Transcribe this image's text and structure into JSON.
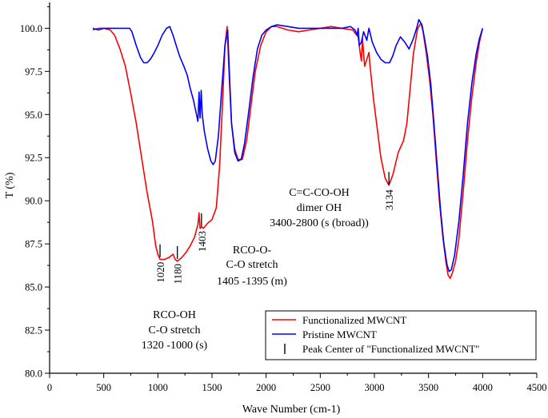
{
  "chart_data": {
    "type": "line",
    "title": "",
    "xlabel": "Wave Number (cm-1)",
    "ylabel": "T (%)",
    "xlim": [
      0,
      4500
    ],
    "ylim": [
      80,
      101.5
    ],
    "x_ticks": [
      0,
      500,
      1000,
      1500,
      2000,
      2500,
      3000,
      3500,
      4000,
      4500
    ],
    "y_ticks": [
      80.0,
      82.5,
      85.0,
      87.5,
      90.0,
      92.5,
      95.0,
      97.5,
      100.0
    ],
    "x_tick_labels": [
      "0",
      "500",
      "1000",
      "1500",
      "2000",
      "2500",
      "3000",
      "3500",
      "4000",
      "4500"
    ],
    "y_tick_labels": [
      "80.0",
      "82.5",
      "85.0",
      "87.5",
      "90.0",
      "92.5",
      "95.0",
      "97.5",
      "100.0"
    ],
    "series": [
      {
        "name": "Functionalized MWCNT",
        "color": "#ff0000",
        "points": [
          [
            400,
            99.9
          ],
          [
            450,
            100.0
          ],
          [
            500,
            100.0
          ],
          [
            560,
            99.9
          ],
          [
            600,
            99.6
          ],
          [
            650,
            98.8
          ],
          [
            700,
            97.8
          ],
          [
            750,
            96.2
          ],
          [
            800,
            94.5
          ],
          [
            850,
            92.5
          ],
          [
            900,
            90.5
          ],
          [
            950,
            88.8
          ],
          [
            980,
            87.4
          ],
          [
            1000,
            86.9
          ],
          [
            1020,
            86.6
          ],
          [
            1060,
            86.6
          ],
          [
            1100,
            86.7
          ],
          [
            1140,
            86.9
          ],
          [
            1160,
            86.6
          ],
          [
            1180,
            86.5
          ],
          [
            1220,
            86.7
          ],
          [
            1260,
            87.0
          ],
          [
            1300,
            87.4
          ],
          [
            1340,
            87.9
          ],
          [
            1360,
            88.4
          ],
          [
            1370,
            88.6
          ],
          [
            1380,
            89.3
          ],
          [
            1390,
            88.4
          ],
          [
            1403,
            88.5
          ],
          [
            1420,
            88.4
          ],
          [
            1460,
            88.7
          ],
          [
            1500,
            88.9
          ],
          [
            1540,
            89.6
          ],
          [
            1570,
            92.0
          ],
          [
            1600,
            96.0
          ],
          [
            1620,
            99.0
          ],
          [
            1640,
            100.1
          ],
          [
            1660,
            97.0
          ],
          [
            1680,
            94.5
          ],
          [
            1710,
            93.0
          ],
          [
            1740,
            92.4
          ],
          [
            1780,
            92.4
          ],
          [
            1820,
            93.5
          ],
          [
            1860,
            95.5
          ],
          [
            1900,
            97.5
          ],
          [
            1950,
            99.0
          ],
          [
            2000,
            99.8
          ],
          [
            2050,
            100.1
          ],
          [
            2100,
            100.1
          ],
          [
            2200,
            99.9
          ],
          [
            2300,
            99.8
          ],
          [
            2400,
            99.9
          ],
          [
            2500,
            100.0
          ],
          [
            2600,
            100.1
          ],
          [
            2700,
            100.0
          ],
          [
            2800,
            99.9
          ],
          [
            2850,
            99.5
          ],
          [
            2870,
            98.5
          ],
          [
            2880,
            98.1
          ],
          [
            2890,
            99.4
          ],
          [
            2910,
            97.8
          ],
          [
            2920,
            98.0
          ],
          [
            2940,
            98.4
          ],
          [
            2950,
            98.6
          ],
          [
            2960,
            97.8
          ],
          [
            2990,
            96.0
          ],
          [
            3020,
            94.5
          ],
          [
            3060,
            92.5
          ],
          [
            3100,
            91.3
          ],
          [
            3134,
            90.9
          ],
          [
            3170,
            91.5
          ],
          [
            3220,
            92.8
          ],
          [
            3270,
            93.5
          ],
          [
            3300,
            94.5
          ],
          [
            3330,
            96.5
          ],
          [
            3360,
            98.5
          ],
          [
            3400,
            100.0
          ],
          [
            3430,
            100.3
          ],
          [
            3450,
            99.8
          ],
          [
            3480,
            98.5
          ],
          [
            3510,
            97.0
          ],
          [
            3540,
            95.0
          ],
          [
            3570,
            92.5
          ],
          [
            3600,
            90.0
          ],
          [
            3630,
            88.0
          ],
          [
            3660,
            86.5
          ],
          [
            3680,
            85.7
          ],
          [
            3700,
            85.5
          ],
          [
            3720,
            85.8
          ],
          [
            3750,
            86.5
          ],
          [
            3780,
            87.8
          ],
          [
            3820,
            90.5
          ],
          [
            3860,
            93.5
          ],
          [
            3900,
            96.0
          ],
          [
            3940,
            98.0
          ],
          [
            3970,
            99.2
          ],
          [
            4000,
            100.0
          ]
        ]
      },
      {
        "name": "Pristine MWCNT",
        "color": "#0000ff",
        "points": [
          [
            400,
            100.0
          ],
          [
            450,
            99.9
          ],
          [
            500,
            100.0
          ],
          [
            550,
            100.0
          ],
          [
            600,
            100.0
          ],
          [
            650,
            100.0
          ],
          [
            700,
            100.0
          ],
          [
            740,
            100.0
          ],
          [
            760,
            99.8
          ],
          [
            800,
            99.0
          ],
          [
            840,
            98.3
          ],
          [
            870,
            98.0
          ],
          [
            900,
            98.0
          ],
          [
            930,
            98.2
          ],
          [
            960,
            98.5
          ],
          [
            1000,
            99.0
          ],
          [
            1040,
            99.6
          ],
          [
            1080,
            100.0
          ],
          [
            1110,
            100.1
          ],
          [
            1140,
            99.6
          ],
          [
            1170,
            99.0
          ],
          [
            1200,
            98.4
          ],
          [
            1240,
            97.8
          ],
          [
            1270,
            97.3
          ],
          [
            1300,
            96.5
          ],
          [
            1330,
            95.8
          ],
          [
            1350,
            95.2
          ],
          [
            1370,
            94.6
          ],
          [
            1380,
            96.3
          ],
          [
            1390,
            94.8
          ],
          [
            1400,
            96.4
          ],
          [
            1410,
            95.0
          ],
          [
            1430,
            94.0
          ],
          [
            1460,
            93.0
          ],
          [
            1490,
            92.3
          ],
          [
            1510,
            92.1
          ],
          [
            1530,
            92.3
          ],
          [
            1560,
            93.8
          ],
          [
            1590,
            96.5
          ],
          [
            1620,
            99.0
          ],
          [
            1645,
            99.9
          ],
          [
            1660,
            97.5
          ],
          [
            1680,
            94.5
          ],
          [
            1710,
            92.8
          ],
          [
            1740,
            92.3
          ],
          [
            1770,
            92.4
          ],
          [
            1800,
            93.3
          ],
          [
            1840,
            95.2
          ],
          [
            1880,
            97.2
          ],
          [
            1920,
            98.8
          ],
          [
            1960,
            99.6
          ],
          [
            2000,
            99.9
          ],
          [
            2050,
            100.1
          ],
          [
            2100,
            100.2
          ],
          [
            2200,
            100.1
          ],
          [
            2300,
            100.0
          ],
          [
            2400,
            100.0
          ],
          [
            2500,
            100.0
          ],
          [
            2600,
            100.0
          ],
          [
            2700,
            100.0
          ],
          [
            2780,
            100.1
          ],
          [
            2820,
            99.9
          ],
          [
            2840,
            99.6
          ],
          [
            2850,
            100.0
          ],
          [
            2860,
            99.0
          ],
          [
            2880,
            99.2
          ],
          [
            2900,
            99.8
          ],
          [
            2930,
            99.3
          ],
          [
            2950,
            100.0
          ],
          [
            2980,
            99.2
          ],
          [
            3020,
            98.6
          ],
          [
            3060,
            98.2
          ],
          [
            3100,
            98.0
          ],
          [
            3140,
            98.0
          ],
          [
            3170,
            98.4
          ],
          [
            3200,
            99.0
          ],
          [
            3240,
            99.5
          ],
          [
            3280,
            99.2
          ],
          [
            3320,
            98.8
          ],
          [
            3360,
            99.4
          ],
          [
            3390,
            100.0
          ],
          [
            3410,
            100.5
          ],
          [
            3440,
            100.2
          ],
          [
            3460,
            99.5
          ],
          [
            3490,
            98.4
          ],
          [
            3520,
            96.8
          ],
          [
            3550,
            94.5
          ],
          [
            3580,
            92.0
          ],
          [
            3610,
            89.5
          ],
          [
            3640,
            87.6
          ],
          [
            3670,
            86.3
          ],
          [
            3690,
            85.9
          ],
          [
            3710,
            86.0
          ],
          [
            3740,
            86.8
          ],
          [
            3780,
            88.8
          ],
          [
            3820,
            91.5
          ],
          [
            3860,
            94.5
          ],
          [
            3900,
            96.8
          ],
          [
            3940,
            98.5
          ],
          [
            3970,
            99.4
          ],
          [
            4000,
            100.0
          ]
        ]
      }
    ],
    "peak_centers": [
      {
        "x": 1020,
        "label": "1020",
        "y_data": 87.1
      },
      {
        "x": 1180,
        "label": "1180",
        "y_data": 87.0
      },
      {
        "x": 1403,
        "label": "1403",
        "y_data": 88.9
      },
      {
        "x": 3134,
        "label": "3134",
        "y_data": 91.3
      }
    ],
    "annotations": [
      {
        "lines": [
          "RCO-OH",
          "C-O stretch",
          "1320  -1000 (s)"
        ]
      },
      {
        "lines": [
          "RCO-O-",
          "C-O stretch",
          "1405  -1395 (m)"
        ]
      },
      {
        "lines": [
          "C=C-CO-OH",
          "dimer OH",
          "3400-2800 (s (broad))"
        ]
      }
    ],
    "legend": {
      "placement": "bottom-right",
      "entries": [
        {
          "label": "Functionalized MWCNT",
          "color": "#ff0000",
          "symbol": "line"
        },
        {
          "label": "Pristine MWCNT",
          "color": "#0000ff",
          "symbol": "line"
        },
        {
          "label": "Peak Center of \"Functionalized MWCNT\"",
          "color": "#000000",
          "symbol": "vbar"
        }
      ]
    }
  }
}
